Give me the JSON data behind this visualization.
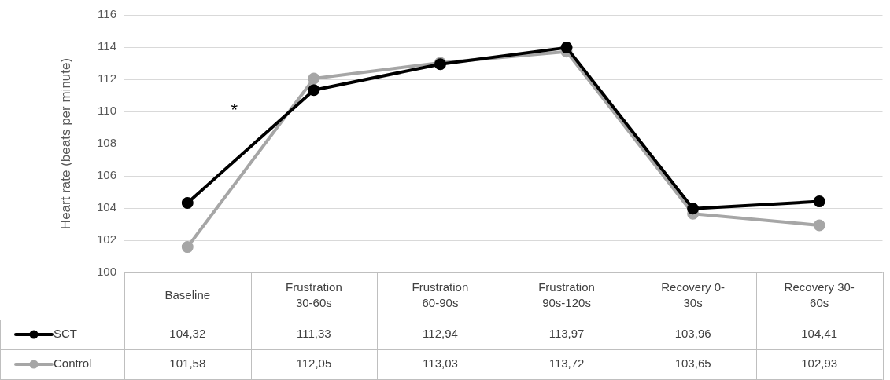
{
  "chart_data": {
    "type": "line",
    "ylabel": "Heart rate (beats per minute)",
    "categories": [
      "Baseline",
      "Frustration 30-60s",
      "Frustration 60-90s",
      "Frustration 90s-120s",
      "Recovery 0-30s",
      "Recovery 30-60s"
    ],
    "series": [
      {
        "name": "SCT",
        "color": "#000000",
        "values": [
          104.32,
          111.33,
          112.94,
          113.97,
          103.96,
          104.41
        ],
        "value_labels": [
          "104,32",
          "111,33",
          "112,94",
          "113,97",
          "103,96",
          "104,41"
        ]
      },
      {
        "name": "Control",
        "color": "#a6a6a6",
        "values": [
          101.58,
          112.05,
          113.03,
          113.72,
          103.65,
          102.93
        ],
        "value_labels": [
          "101,58",
          "112,05",
          "113,03",
          "113,72",
          "103,65",
          "102,93"
        ]
      }
    ],
    "ylim": [
      100,
      116
    ],
    "yticks": [
      100,
      102,
      104,
      106,
      108,
      110,
      112,
      114,
      116
    ],
    "grid": "y",
    "legend": "bottom left",
    "marker": "circle",
    "annotations": [
      "*"
    ]
  }
}
